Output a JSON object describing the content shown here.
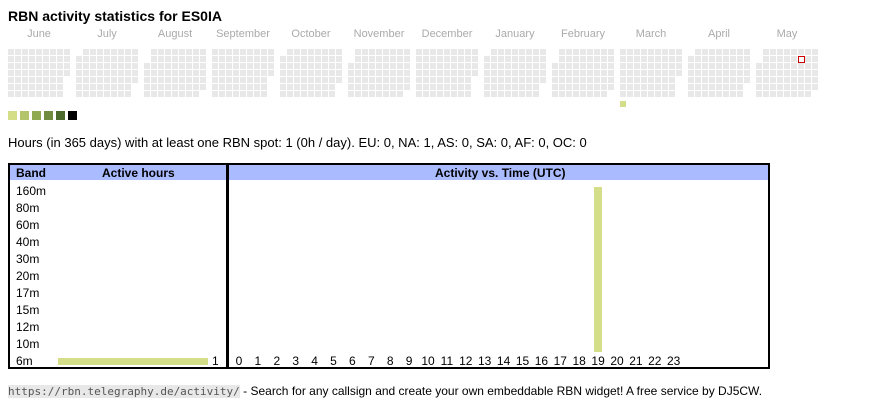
{
  "title": "RBN activity statistics for ES0IA",
  "calendar": {
    "months": [
      "June",
      "July",
      "August",
      "September",
      "October",
      "November",
      "December",
      "January",
      "February",
      "March",
      "April",
      "May"
    ],
    "active_day": {
      "month": "March",
      "level": 1
    },
    "today_marker": "May"
  },
  "legend": {
    "colors": [
      "#d4dd88",
      "#b3c46a",
      "#90aa52",
      "#6f8c3f",
      "#4c6a2c",
      "#000000"
    ]
  },
  "summary": "Hours (in 365 days) with at least one RBN spot: 1 (0h / day). EU: 0, NA: 1, AS: 0, SA: 0, AF: 0, OC: 0",
  "table": {
    "headers": {
      "band": "Band",
      "active_hours": "Active hours",
      "activity_vs_time": "Activity vs. Time (UTC)"
    },
    "bands": [
      {
        "name": "160m",
        "hours": 0
      },
      {
        "name": "80m",
        "hours": 0
      },
      {
        "name": "60m",
        "hours": 0
      },
      {
        "name": "40m",
        "hours": 0
      },
      {
        "name": "30m",
        "hours": 0
      },
      {
        "name": "20m",
        "hours": 0
      },
      {
        "name": "17m",
        "hours": 0
      },
      {
        "name": "15m",
        "hours": 0
      },
      {
        "name": "12m",
        "hours": 0
      },
      {
        "name": "10m",
        "hours": 0
      },
      {
        "name": "6m",
        "hours": 1,
        "count_label": "1"
      }
    ],
    "hour_labels": [
      "0",
      "1",
      "2",
      "3",
      "4",
      "5",
      "6",
      "7",
      "8",
      "9",
      "10",
      "11",
      "12",
      "13",
      "14",
      "15",
      "16",
      "17",
      "18",
      "19",
      "20",
      "21",
      "22",
      "23"
    ],
    "activity_by_hour": [
      0,
      0,
      0,
      0,
      0,
      0,
      0,
      0,
      0,
      0,
      0,
      0,
      0,
      0,
      0,
      0,
      0,
      0,
      0,
      1,
      0,
      0,
      0,
      0
    ],
    "bar_color": "#d4dd88"
  },
  "footer": {
    "url": "https://rbn.telegraphy.de/activity/",
    "text": " - Search for any callsign and create your own embeddable RBN widget! A free service by DJ5CW."
  }
}
